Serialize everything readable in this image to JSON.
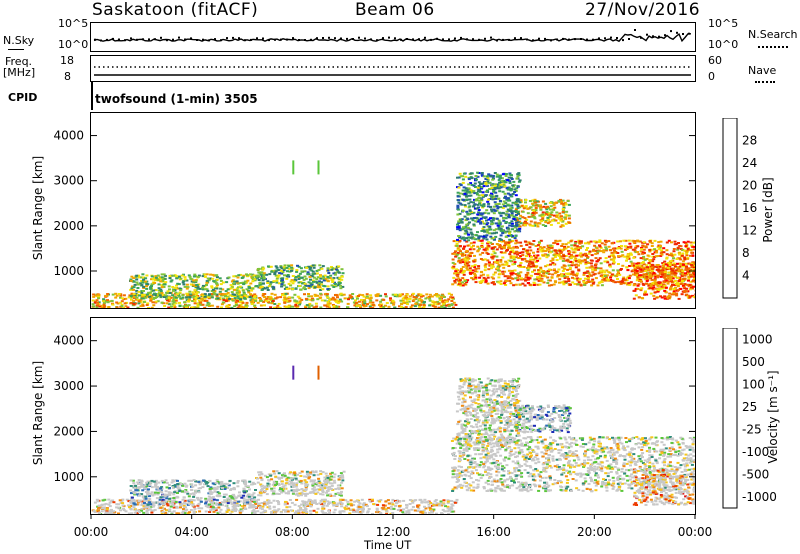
{
  "header": {
    "station": "Saskatoon (fitACF)",
    "beam": "Beam 06",
    "date": "27/Nov/2016"
  },
  "top_panels": {
    "nsky_label": "N.Sky",
    "nsky_ticks": [
      "10^5",
      "10^0"
    ],
    "nsearch_label": "N.Search",
    "nsearch_ticks": [
      "10^5",
      "10^0"
    ],
    "freq_label": "Freq.",
    "freq_unit": "[MHz]",
    "freq_ticks": [
      "18",
      "8"
    ],
    "nave_label": "Nave",
    "nave_ticks": [
      "60",
      "0"
    ],
    "cpid_label": "CPID",
    "cpid_text": "twofsound (1-min) 3505"
  },
  "chart_data": [
    {
      "type": "heatmap",
      "name": "power",
      "ylabel": "Slant Range [km]",
      "xlabel": "Time UT",
      "xlim": [
        0,
        24
      ],
      "ylim": [
        180,
        4500
      ],
      "yticks": [
        "1000",
        "2000",
        "3000",
        "4000"
      ],
      "colorbar": {
        "label": "Power [dB]",
        "ticks": [
          "4",
          "8",
          "12",
          "16",
          "20",
          "24",
          "28"
        ],
        "colors": [
          "#0000ff",
          "#1f4fb0",
          "#2e7d6e",
          "#3aa35a",
          "#7fc33a",
          "#f2e20a",
          "#f0a500",
          "#f06a00",
          "#ee2a00",
          "#ff0000"
        ]
      },
      "regions": [
        {
          "t0": 0.0,
          "t1": 14.5,
          "r0": 200,
          "r1": 520,
          "level": 0.6
        },
        {
          "t0": 1.5,
          "t1": 6.5,
          "r0": 400,
          "r1": 950,
          "level": 0.45
        },
        {
          "t0": 6.5,
          "t1": 10.0,
          "r0": 600,
          "r1": 1150,
          "level": 0.4
        },
        {
          "t0": 14.3,
          "t1": 24.0,
          "r0": 700,
          "r1": 1700,
          "level": 0.7
        },
        {
          "t0": 16.8,
          "t1": 19.0,
          "r0": 2000,
          "r1": 2600,
          "level": 0.6
        },
        {
          "t0": 14.5,
          "t1": 17.0,
          "r0": 1700,
          "r1": 3200,
          "level": 0.3
        },
        {
          "t0": 21.5,
          "t1": 24.0,
          "r0": 400,
          "r1": 1200,
          "level": 0.75
        }
      ]
    },
    {
      "type": "heatmap",
      "name": "velocity",
      "ylabel": "Slant Range [km]",
      "xlabel": "Time UT",
      "xlim": [
        0,
        24
      ],
      "ylim": [
        180,
        4500
      ],
      "yticks": [
        "1000",
        "2000",
        "3000",
        "4000"
      ],
      "xticks": [
        "00:00",
        "04:00",
        "08:00",
        "12:00",
        "16:00",
        "20:00",
        "00:00"
      ],
      "colorbar": {
        "label": "Velocity [m s⁻¹]",
        "ticks": [
          "1000",
          "500",
          "100",
          "25",
          "-25",
          "-100",
          "-500",
          "-1000"
        ],
        "colors": [
          "#1d2bb5",
          "#2a6db8",
          "#2e8d7a",
          "#5ac63a",
          "#c8c8c8",
          "#f6c61a",
          "#f08a10",
          "#ee3a00",
          "#e01010"
        ]
      },
      "regions": [
        {
          "t0": 0.0,
          "t1": 14.5,
          "r0": 200,
          "r1": 520,
          "level": 0.62
        },
        {
          "t0": 1.5,
          "t1": 6.5,
          "r0": 400,
          "r1": 950,
          "level": 0.3
        },
        {
          "t0": 6.5,
          "t1": 10.0,
          "r0": 600,
          "r1": 1150,
          "level": 0.5
        },
        {
          "t0": 14.3,
          "t1": 24.0,
          "r0": 700,
          "r1": 1900,
          "level": 0.5
        },
        {
          "t0": 16.8,
          "t1": 19.0,
          "r0": 2000,
          "r1": 2600,
          "level": 0.2
        },
        {
          "t0": 14.5,
          "t1": 17.0,
          "r0": 1700,
          "r1": 3200,
          "level": 0.5
        },
        {
          "t0": 21.5,
          "t1": 24.0,
          "r0": 400,
          "r1": 1200,
          "level": 0.7
        }
      ]
    }
  ]
}
